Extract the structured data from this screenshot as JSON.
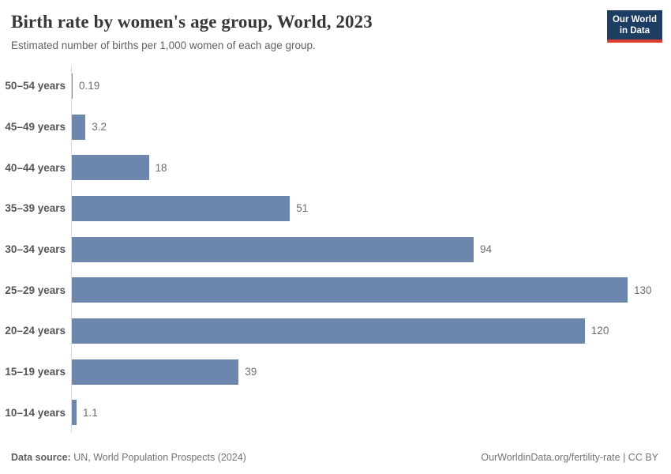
{
  "header": {
    "title": "Birth rate by women's age group, World, 2023",
    "subtitle": "Estimated number of births per 1,000 women of each age group.",
    "logo": {
      "line1": "Our World",
      "line2": "in Data",
      "bg_color": "#1d3d63",
      "accent_color": "#dc3e32"
    }
  },
  "chart_data": {
    "type": "bar",
    "orientation": "horizontal",
    "title": "Birth rate by women's age group, World, 2023",
    "subtitle": "Estimated number of births per 1,000 women of each age group.",
    "categories": [
      "50–54 years",
      "45–49 years",
      "40–44 years",
      "35–39 years",
      "30–34 years",
      "25–29 years",
      "20–24 years",
      "15–19 years",
      "10–14 years"
    ],
    "values": [
      0.19,
      3.2,
      18,
      51,
      94,
      130,
      120,
      39,
      1.1
    ],
    "display_values": [
      "0.19",
      "3.2",
      "18",
      "51",
      "94",
      "130",
      "120",
      "39",
      "1.1"
    ],
    "xlabel": "",
    "ylabel": "",
    "xlim": [
      0,
      130
    ],
    "grid": false,
    "legend": false,
    "value_labels": true,
    "bar_color": "#6c86ae",
    "axis_line_color": "#d9dde2"
  },
  "footer": {
    "source_label": "Data source:",
    "source_text": "UN, World Population Prospects (2024)",
    "url": "OurWorldinData.org/fertility-rate",
    "separator": "|",
    "license": "CC BY"
  }
}
